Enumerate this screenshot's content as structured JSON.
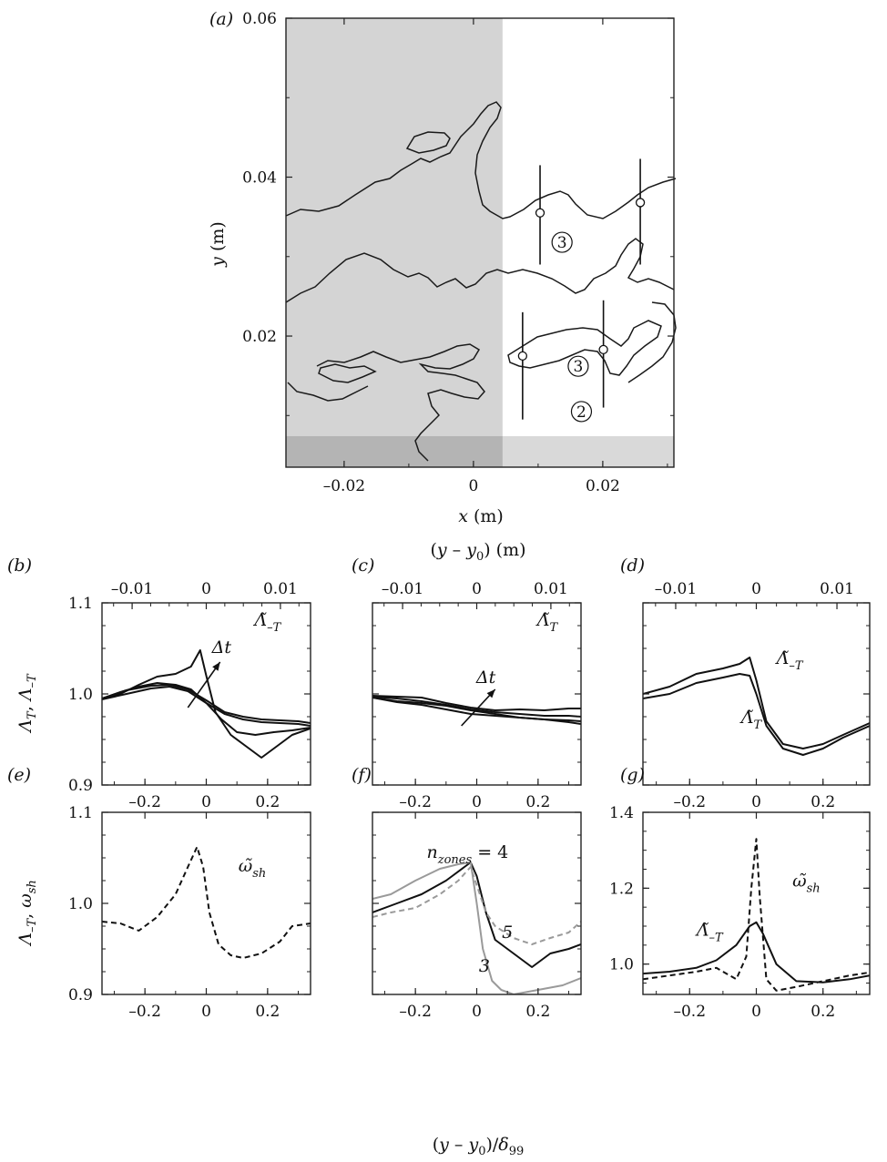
{
  "chart_data": [
    {
      "id": "a",
      "panel_label": "(a)",
      "type": "diagram",
      "xlabel": "x (m)",
      "ylabel": "y (m)",
      "xlim": [
        -0.029,
        0.031
      ],
      "ylim": [
        0.0035,
        0.06
      ],
      "xticks": [
        -0.02,
        0,
        0.02
      ],
      "xtick_labels": [
        "–0.02",
        "0",
        "0.02"
      ],
      "yticks": [
        0.02,
        0.04,
        0.06
      ],
      "ytick_labels": [
        "0.02",
        "0.04",
        "0.06"
      ],
      "shaded_regions": [
        {
          "x": [
            -0.029,
            0.0045
          ],
          "y": [
            0.0035,
            0.06
          ],
          "color": "#d4d4d4"
        },
        {
          "x": [
            -0.029,
            0.031
          ],
          "y": [
            0.0035,
            0.0074
          ],
          "color": "#b5b5b5"
        }
      ],
      "zone_labels": [
        {
          "text": "3",
          "x": 0.0137,
          "y": 0.0318
        },
        {
          "text": "3",
          "x": 0.0162,
          "y": 0.0162
        },
        {
          "text": "2",
          "x": 0.0167,
          "y": 0.0105
        }
      ],
      "markers": [
        {
          "x": 0.0103,
          "y": 0.0355,
          "line_y": [
            0.029,
            0.0415
          ]
        },
        {
          "x": 0.0258,
          "y": 0.0368,
          "line_y": [
            0.029,
            0.0423
          ]
        },
        {
          "x": 0.0076,
          "y": 0.0175,
          "line_y": [
            0.0095,
            0.023
          ]
        },
        {
          "x": 0.0201,
          "y": 0.0183,
          "line_y": [
            0.011,
            0.0245
          ]
        }
      ]
    },
    {
      "id": "b",
      "panel_label": "(b)",
      "type": "line",
      "top_axis_label": "(y – y0) (m)",
      "top_ticks": [
        "–0.01",
        "0",
        "0.01"
      ],
      "top_tick_values": [
        -0.01,
        0,
        0.01
      ],
      "ylabel": "Λ̃T, Λ̃–T",
      "xlim": [
        -0.34,
        0.34
      ],
      "ylim": [
        0.9,
        1.1
      ],
      "xticks": [
        -0.2,
        0,
        0.2
      ],
      "xtick_labels": [
        "–0.2",
        "0",
        "0.2"
      ],
      "yticks": [
        0.9,
        1.0,
        1.1
      ],
      "ytick_labels": [
        "0.9",
        "1.0",
        "1.1"
      ],
      "annotations": [
        {
          "text": "Λ̃–T",
          "x": 0.2,
          "y": 1.075
        },
        {
          "text": "Δt",
          "x": 0.05,
          "y": 1.045
        }
      ],
      "arrow": {
        "x": [
          -0.06,
          0.045
        ],
        "y": [
          0.985,
          1.035
        ]
      },
      "series": [
        {
          "style": "solid",
          "x": [
            -0.34,
            -0.28,
            -0.22,
            -0.16,
            -0.1,
            -0.05,
            -0.02,
            0.0,
            0.03,
            0.08,
            0.14,
            0.18,
            0.22,
            0.28,
            0.34
          ],
          "y": [
            0.995,
            1.0,
            1.01,
            1.019,
            1.022,
            1.03,
            1.048,
            1.02,
            0.98,
            0.955,
            0.94,
            0.93,
            0.94,
            0.955,
            0.962
          ]
        },
        {
          "style": "solid",
          "x": [
            -0.34,
            -0.28,
            -0.22,
            -0.16,
            -0.1,
            -0.05,
            0.0,
            0.05,
            0.1,
            0.16,
            0.22,
            0.28,
            0.34
          ],
          "y": [
            0.995,
            1.002,
            1.008,
            1.012,
            1.01,
            1.005,
            0.99,
            0.972,
            0.958,
            0.955,
            0.958,
            0.96,
            0.963
          ]
        },
        {
          "style": "solid",
          "x": [
            -0.34,
            -0.26,
            -0.18,
            -0.12,
            -0.06,
            0.0,
            0.06,
            0.12,
            0.18,
            0.24,
            0.3,
            0.34
          ],
          "y": [
            0.995,
            1.004,
            1.009,
            1.01,
            1.005,
            0.993,
            0.98,
            0.975,
            0.972,
            0.971,
            0.97,
            0.968
          ]
        },
        {
          "style": "solid",
          "x": [
            -0.34,
            -0.26,
            -0.18,
            -0.12,
            -0.06,
            0.0,
            0.06,
            0.12,
            0.18,
            0.24,
            0.3,
            0.34
          ],
          "y": [
            0.994,
            1.0,
            1.006,
            1.008,
            1.003,
            0.99,
            0.978,
            0.972,
            0.969,
            0.968,
            0.967,
            0.965
          ]
        }
      ]
    },
    {
      "id": "c",
      "panel_label": "(c)",
      "type": "line",
      "top_ticks": [
        "–0.01",
        "0",
        "0.01"
      ],
      "top_tick_values": [
        -0.01,
        0,
        0.01
      ],
      "xlim": [
        -0.34,
        0.34
      ],
      "ylim": [
        0.9,
        1.1
      ],
      "xticks": [
        -0.2,
        0,
        0.2
      ],
      "xtick_labels": [
        "–0.2",
        "0",
        "0.2"
      ],
      "annotations": [
        {
          "text": "Λ̃T",
          "x": 0.23,
          "y": 1.075
        },
        {
          "text": "Δt",
          "x": 0.03,
          "y": 1.012
        }
      ],
      "arrow": {
        "x": [
          -0.05,
          0.06
        ],
        "y": [
          0.965,
          1.005
        ]
      },
      "series": [
        {
          "style": "solid",
          "x": [
            -0.34,
            -0.26,
            -0.18,
            -0.1,
            -0.02,
            0.06,
            0.14,
            0.22,
            0.3,
            0.34
          ],
          "y": [
            0.998,
            0.997,
            0.996,
            0.99,
            0.985,
            0.982,
            0.983,
            0.982,
            0.984,
            0.984
          ]
        },
        {
          "style": "solid",
          "x": [
            -0.34,
            -0.26,
            -0.18,
            -0.1,
            -0.02,
            0.06,
            0.14,
            0.22,
            0.3,
            0.34
          ],
          "y": [
            0.997,
            0.995,
            0.992,
            0.988,
            0.983,
            0.98,
            0.978,
            0.976,
            0.976,
            0.975
          ]
        },
        {
          "style": "solid",
          "x": [
            -0.34,
            -0.26,
            -0.18,
            -0.1,
            -0.02,
            0.06,
            0.14,
            0.22,
            0.3,
            0.34
          ],
          "y": [
            0.996,
            0.992,
            0.99,
            0.987,
            0.982,
            0.978,
            0.974,
            0.972,
            0.971,
            0.97
          ]
        },
        {
          "style": "solid",
          "x": [
            -0.34,
            -0.26,
            -0.18,
            -0.1,
            -0.02,
            0.06,
            0.14,
            0.22,
            0.3,
            0.34
          ],
          "y": [
            0.996,
            0.991,
            0.988,
            0.983,
            0.978,
            0.976,
            0.974,
            0.972,
            0.969,
            0.967
          ]
        }
      ]
    },
    {
      "id": "d",
      "panel_label": "(d)",
      "type": "line",
      "top_ticks": [
        "–0.01",
        "0",
        "0.01"
      ],
      "top_tick_values": [
        -0.01,
        0,
        0.01
      ],
      "xlim": [
        -0.34,
        0.34
      ],
      "ylim": [
        0.9,
        1.1
      ],
      "xticks": [
        -0.2,
        0,
        0.2
      ],
      "xtick_labels": [
        "–0.2",
        "0",
        "0.2"
      ],
      "annotations": [
        {
          "text": "Λ̃–T",
          "x": 0.1,
          "y": 1.033
        },
        {
          "text": "Λ̃T",
          "x": -0.015,
          "y": 0.968
        }
      ],
      "series": [
        {
          "style": "solid",
          "x": [
            -0.34,
            -0.26,
            -0.18,
            -0.1,
            -0.05,
            -0.02,
            0.0,
            0.03,
            0.08,
            0.14,
            0.2,
            0.26,
            0.34
          ],
          "y": [
            1.0,
            1.008,
            1.022,
            1.028,
            1.033,
            1.04,
            1.015,
            0.97,
            0.945,
            0.94,
            0.945,
            0.955,
            0.968
          ]
        },
        {
          "style": "solid",
          "x": [
            -0.34,
            -0.26,
            -0.18,
            -0.1,
            -0.05,
            -0.02,
            0.0,
            0.03,
            0.08,
            0.14,
            0.2,
            0.26,
            0.34
          ],
          "y": [
            0.995,
            1.0,
            1.012,
            1.018,
            1.022,
            1.02,
            1.0,
            0.965,
            0.94,
            0.933,
            0.94,
            0.952,
            0.965
          ]
        }
      ]
    },
    {
      "id": "e",
      "panel_label": "(e)",
      "type": "line",
      "ylabel": "Λ̃–T, ω̃sh",
      "xlim": [
        -0.34,
        0.34
      ],
      "ylim": [
        0.9,
        1.1
      ],
      "xticks": [
        -0.2,
        0,
        0.2
      ],
      "xtick_labels": [
        "–0.2",
        "0",
        "0.2"
      ],
      "yticks": [
        0.9,
        1.0,
        1.1
      ],
      "ytick_labels": [
        "0.9",
        "1.0",
        "1.1"
      ],
      "annotations": [
        {
          "text": "ω̃sh",
          "x": 0.15,
          "y": 1.035
        }
      ],
      "series": [
        {
          "style": "dashed",
          "x": [
            -0.34,
            -0.28,
            -0.22,
            -0.16,
            -0.1,
            -0.06,
            -0.03,
            -0.01,
            0.01,
            0.04,
            0.08,
            0.12,
            0.18,
            0.24,
            0.28,
            0.34
          ],
          "y": [
            0.98,
            0.978,
            0.97,
            0.985,
            1.01,
            1.04,
            1.062,
            1.04,
            0.99,
            0.955,
            0.943,
            0.94,
            0.945,
            0.958,
            0.975,
            0.978
          ]
        }
      ]
    },
    {
      "id": "f",
      "panel_label": "(f)",
      "type": "line",
      "xlabel": "(y – y0)/δ99",
      "xlim": [
        -0.34,
        0.34
      ],
      "ylim": [
        0.9,
        1.1
      ],
      "xticks": [
        -0.2,
        0,
        0.2
      ],
      "xtick_labels": [
        "–0.2",
        "0",
        "0.2"
      ],
      "annotations": [
        {
          "text": "nzones = 4",
          "x": -0.03,
          "y": 1.05
        },
        {
          "text": "5",
          "x": 0.1,
          "y": 0.962
        },
        {
          "text": "3",
          "x": 0.025,
          "y": 0.925
        }
      ],
      "series": [
        {
          "name": "4",
          "style": "solid",
          "color": "#111111",
          "x": [
            -0.34,
            -0.26,
            -0.18,
            -0.1,
            -0.04,
            -0.02,
            0.0,
            0.03,
            0.06,
            0.12,
            0.18,
            0.24,
            0.3,
            0.34
          ],
          "y": [
            0.99,
            1.0,
            1.01,
            1.025,
            1.04,
            1.045,
            1.03,
            0.99,
            0.96,
            0.945,
            0.93,
            0.945,
            0.95,
            0.955
          ]
        },
        {
          "name": "3",
          "style": "solid",
          "color": "#9a9a9a",
          "x": [
            -0.34,
            -0.28,
            -0.2,
            -0.12,
            -0.06,
            -0.02,
            0.0,
            0.02,
            0.05,
            0.08,
            0.12,
            0.2,
            0.28,
            0.34
          ],
          "y": [
            1.005,
            1.01,
            1.025,
            1.038,
            1.043,
            1.045,
            1.0,
            0.95,
            0.915,
            0.905,
            0.9,
            0.905,
            0.91,
            0.918
          ]
        },
        {
          "name": "5",
          "style": "dashed",
          "color": "#9a9a9a",
          "x": [
            -0.34,
            -0.28,
            -0.2,
            -0.12,
            -0.06,
            -0.02,
            0.0,
            0.03,
            0.06,
            0.12,
            0.18,
            0.24,
            0.3,
            0.34
          ],
          "y": [
            0.985,
            0.99,
            0.995,
            1.01,
            1.025,
            1.04,
            1.02,
            0.99,
            0.975,
            0.962,
            0.955,
            0.962,
            0.968,
            0.98
          ]
        }
      ]
    },
    {
      "id": "g",
      "panel_label": "(g)",
      "type": "line",
      "xlim": [
        -0.34,
        0.34
      ],
      "ylim": [
        0.92,
        1.4
      ],
      "xticks": [
        -0.2,
        0,
        0.2
      ],
      "xtick_labels": [
        "–0.2",
        "0",
        "0.2"
      ],
      "yticks": [
        1.0,
        1.2,
        1.4
      ],
      "ytick_labels": [
        "1.0",
        "1.2",
        "1.4"
      ],
      "annotations": [
        {
          "text": "ω̃sh",
          "x": 0.15,
          "y": 1.205
        },
        {
          "text": "Λ̃–T",
          "x": -0.14,
          "y": 1.075
        }
      ],
      "series": [
        {
          "name": "Λ̃–T",
          "style": "solid",
          "x": [
            -0.34,
            -0.26,
            -0.18,
            -0.12,
            -0.06,
            -0.02,
            0.0,
            0.02,
            0.06,
            0.12,
            0.2,
            0.28,
            0.34
          ],
          "y": [
            0.975,
            0.98,
            0.99,
            1.01,
            1.05,
            1.1,
            1.11,
            1.08,
            1.0,
            0.955,
            0.952,
            0.96,
            0.97
          ]
        },
        {
          "name": "ω̃sh",
          "style": "dashed",
          "x": [
            -0.34,
            -0.26,
            -0.18,
            -0.12,
            -0.06,
            -0.03,
            -0.015,
            0.0,
            0.01,
            0.03,
            0.06,
            0.12,
            0.2,
            0.28,
            0.34
          ],
          "y": [
            0.96,
            0.97,
            0.98,
            0.99,
            0.96,
            1.02,
            1.2,
            1.33,
            1.18,
            0.96,
            0.93,
            0.94,
            0.955,
            0.97,
            0.978
          ]
        }
      ]
    }
  ]
}
